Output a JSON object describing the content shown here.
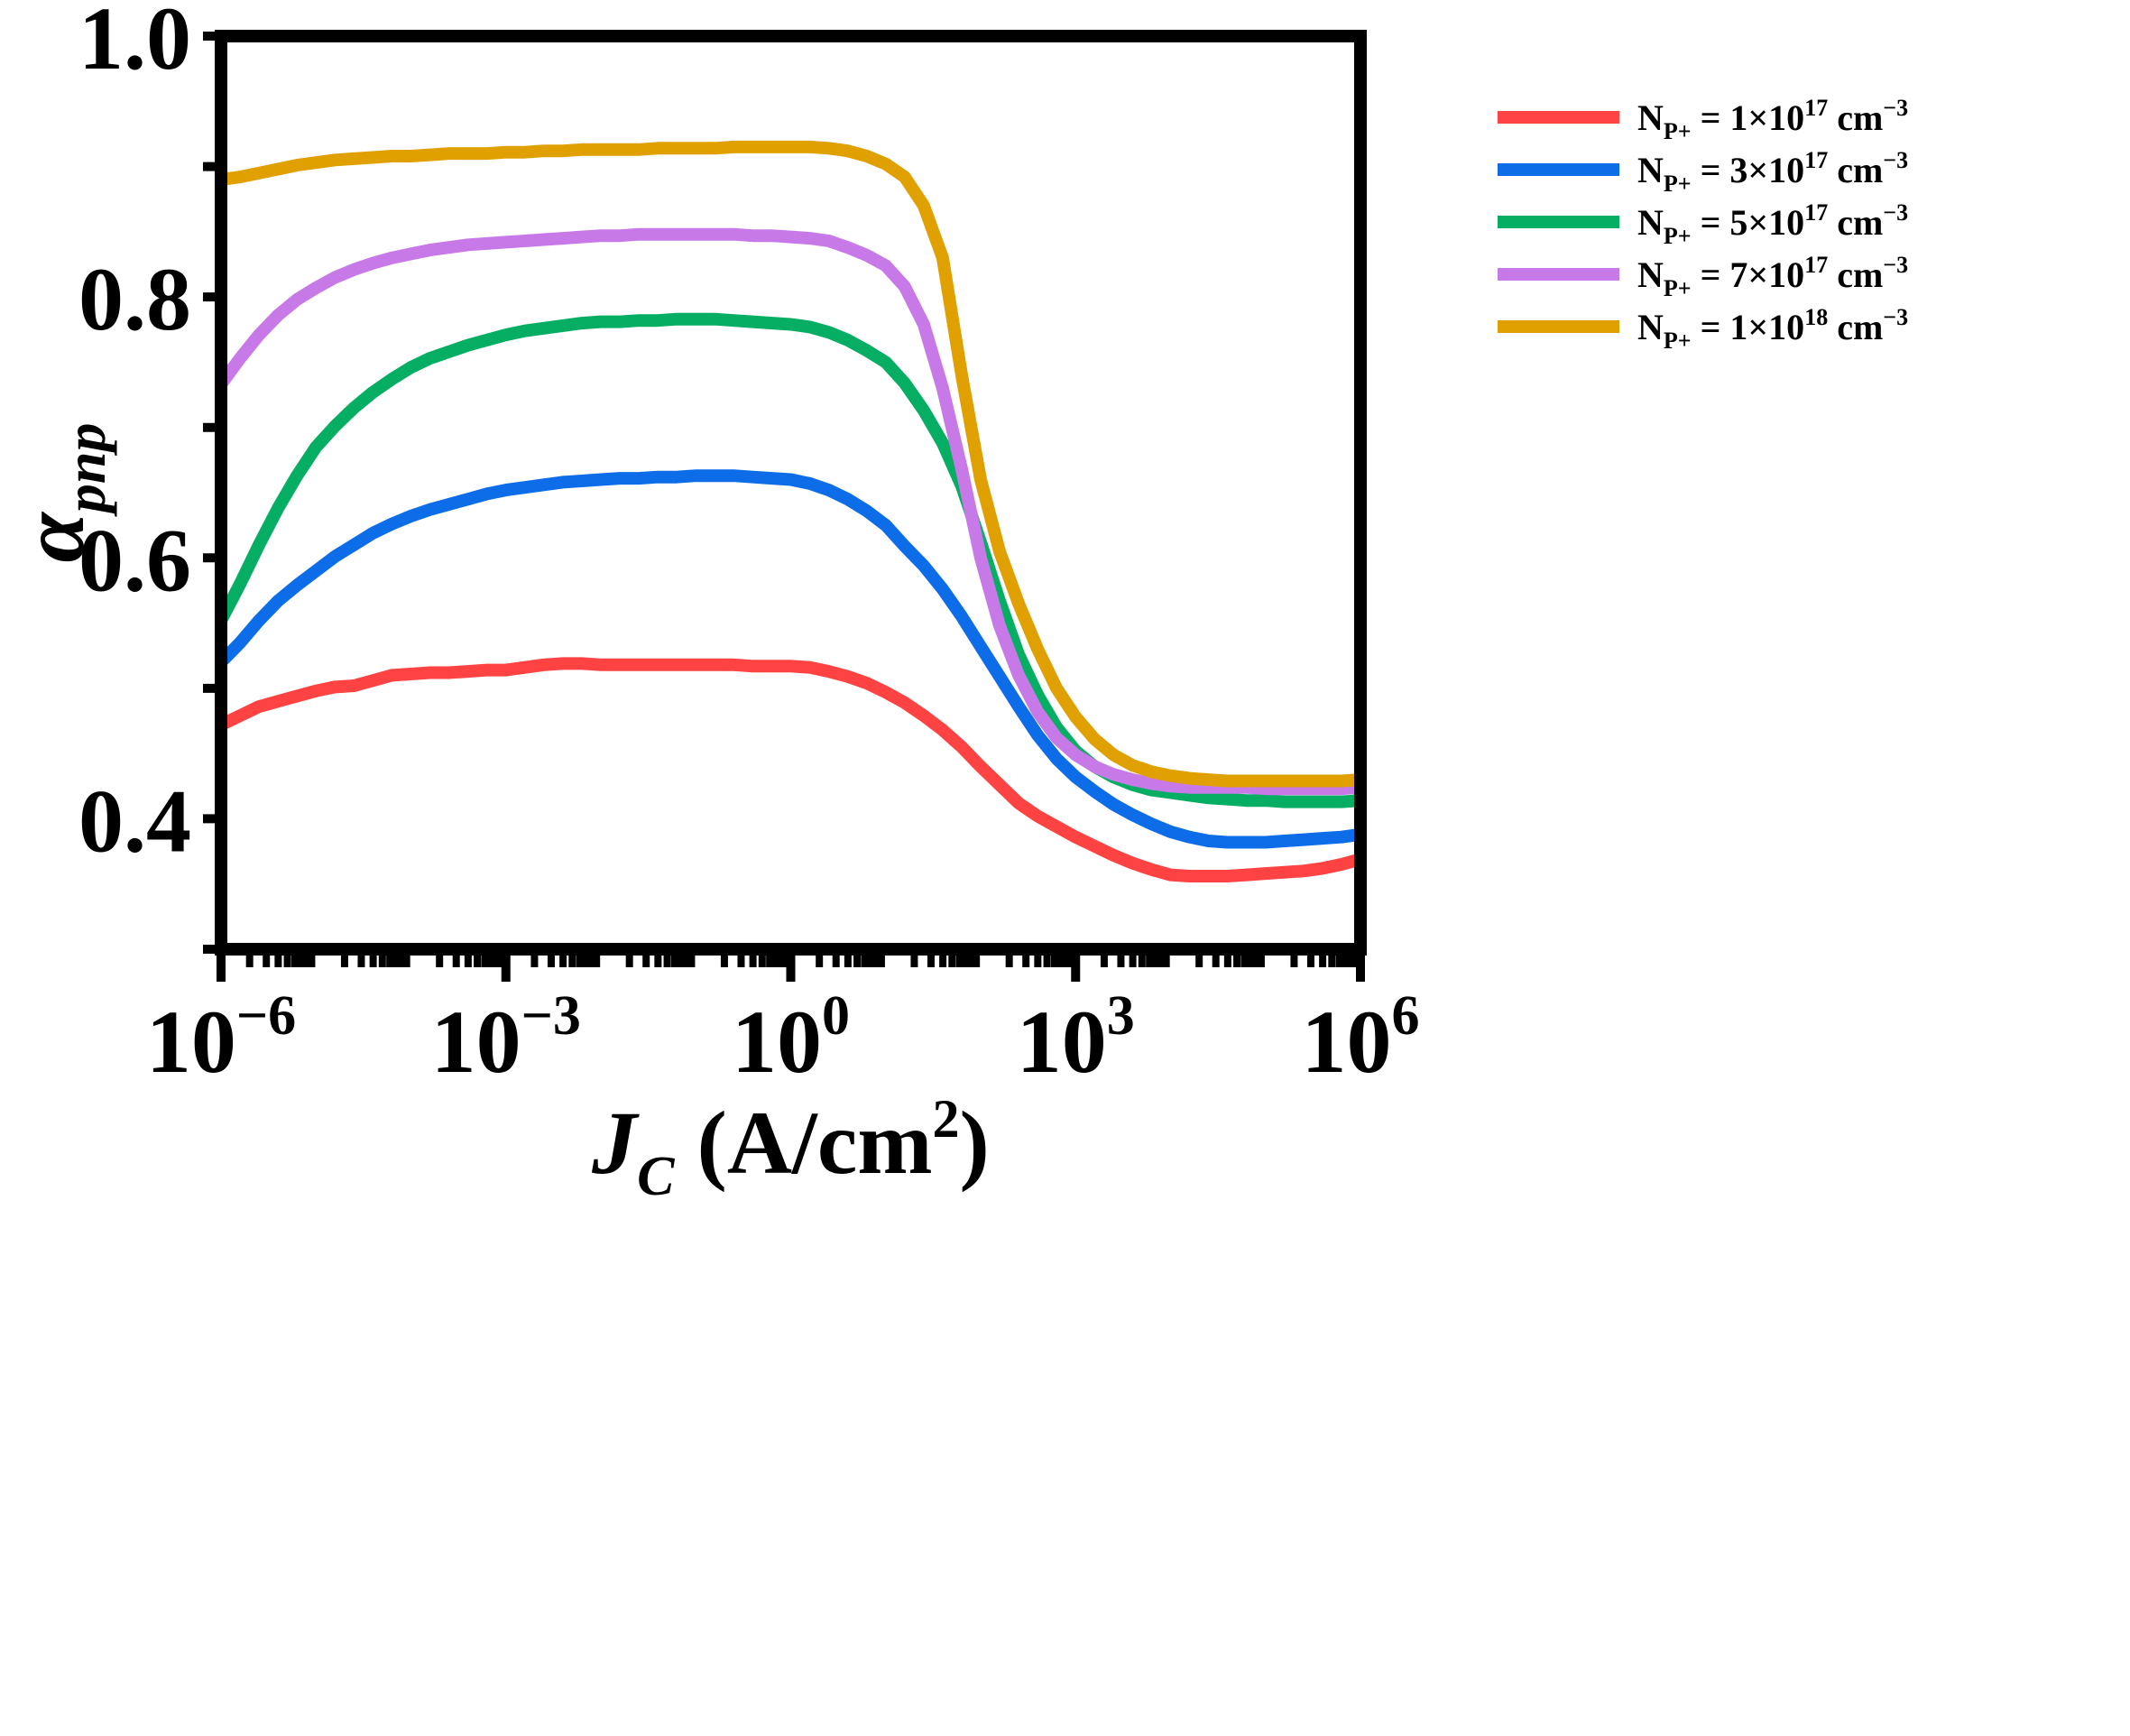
{
  "chart_data": {
    "type": "line",
    "title": "",
    "xlabel": {
      "symbol": "J",
      "subscript": "C",
      "unit_open": " (A/cm",
      "unit_sup": "2",
      "unit_close": ")"
    },
    "ylabel": {
      "symbol": "α",
      "subscript": "pnp"
    },
    "xscale": "log10",
    "xlim_exp": [
      -6,
      6
    ],
    "ylim": [
      0.3,
      1.0
    ],
    "x_ticks": [
      {
        "exp": -6,
        "base": "10",
        "sup": "−6"
      },
      {
        "exp": -3,
        "base": "10",
        "sup": "−3"
      },
      {
        "exp": 0,
        "base": "10",
        "sup": "0"
      },
      {
        "exp": 3,
        "base": "10",
        "sup": "3"
      },
      {
        "exp": 6,
        "base": "10",
        "sup": "6"
      }
    ],
    "y_ticks": [
      {
        "value": 1.0,
        "label": "1.0"
      },
      {
        "value": 0.8,
        "label": "0.8"
      },
      {
        "value": 0.6,
        "label": "0.6"
      },
      {
        "value": 0.4,
        "label": "0.4"
      }
    ],
    "y_minor_ticks": [
      0.9,
      0.7,
      0.5,
      0.3
    ],
    "grid": false,
    "legend_position": "top-right",
    "series": [
      {
        "name": "NP+ = 1×10^17 cm^-3",
        "label": {
          "main": "N",
          "sub": "P+",
          "mid": " = 1×10",
          "sup1": "17",
          "unit": " cm",
          "sup2": "−3"
        },
        "color": "#ff4242",
        "x_exp": [
          -6,
          -5.8,
          -5.6,
          -5.4,
          -5.2,
          -5,
          -4.8,
          -4.6,
          -4.4,
          -4.2,
          -4,
          -3.8,
          -3.6,
          -3.4,
          -3.2,
          -3,
          -2.8,
          -2.6,
          -2.4,
          -2.2,
          -2,
          -1.8,
          -1.6,
          -1.4,
          -1.2,
          -1,
          -0.8,
          -0.6,
          -0.4,
          -0.2,
          0,
          0.2,
          0.4,
          0.6,
          0.8,
          1,
          1.2,
          1.4,
          1.6,
          1.8,
          2,
          2.2,
          2.4,
          2.6,
          2.8,
          3,
          3.2,
          3.4,
          3.6,
          3.8,
          4,
          4.2,
          4.4,
          4.6,
          4.8,
          5,
          5.2,
          5.4,
          5.6,
          5.8,
          6
        ],
        "y": [
          0.472,
          0.479,
          0.486,
          0.49,
          0.494,
          0.498,
          0.501,
          0.502,
          0.506,
          0.51,
          0.511,
          0.512,
          0.512,
          0.513,
          0.514,
          0.514,
          0.516,
          0.518,
          0.519,
          0.519,
          0.518,
          0.518,
          0.518,
          0.518,
          0.518,
          0.518,
          0.518,
          0.518,
          0.517,
          0.517,
          0.517,
          0.516,
          0.513,
          0.509,
          0.504,
          0.497,
          0.489,
          0.479,
          0.468,
          0.455,
          0.44,
          0.426,
          0.412,
          0.402,
          0.394,
          0.386,
          0.379,
          0.372,
          0.366,
          0.361,
          0.357,
          0.356,
          0.356,
          0.356,
          0.357,
          0.358,
          0.359,
          0.36,
          0.362,
          0.365,
          0.369
        ]
      },
      {
        "name": "NP+ = 3×10^17 cm^-3",
        "label": {
          "main": "N",
          "sub": "P+",
          "mid": " = 3×10",
          "sup1": "17",
          "unit": " cm",
          "sup2": "−3"
        },
        "color": "#0d6de8",
        "x_exp": [
          -6,
          -5.8,
          -5.6,
          -5.4,
          -5.2,
          -5,
          -4.8,
          -4.6,
          -4.4,
          -4.2,
          -4,
          -3.8,
          -3.6,
          -3.4,
          -3.2,
          -3,
          -2.8,
          -2.6,
          -2.4,
          -2.2,
          -2,
          -1.8,
          -1.6,
          -1.4,
          -1.2,
          -1,
          -0.8,
          -0.6,
          -0.4,
          -0.2,
          0,
          0.2,
          0.4,
          0.6,
          0.8,
          1,
          1.2,
          1.4,
          1.6,
          1.8,
          2,
          2.2,
          2.4,
          2.6,
          2.8,
          3,
          3.2,
          3.4,
          3.6,
          3.8,
          4,
          4.2,
          4.4,
          4.6,
          4.8,
          5,
          5.2,
          5.4,
          5.6,
          5.8,
          6
        ],
        "y": [
          0.52,
          0.535,
          0.552,
          0.567,
          0.579,
          0.59,
          0.601,
          0.61,
          0.619,
          0.626,
          0.632,
          0.637,
          0.641,
          0.645,
          0.649,
          0.652,
          0.654,
          0.656,
          0.658,
          0.659,
          0.66,
          0.661,
          0.661,
          0.662,
          0.662,
          0.663,
          0.663,
          0.663,
          0.662,
          0.661,
          0.66,
          0.657,
          0.652,
          0.645,
          0.636,
          0.625,
          0.609,
          0.594,
          0.576,
          0.555,
          0.532,
          0.509,
          0.486,
          0.464,
          0.446,
          0.432,
          0.421,
          0.411,
          0.403,
          0.396,
          0.39,
          0.386,
          0.383,
          0.382,
          0.382,
          0.382,
          0.383,
          0.384,
          0.385,
          0.386,
          0.388
        ]
      },
      {
        "name": "NP+ = 5×10^17 cm^-3",
        "label": {
          "main": "N",
          "sub": "P+",
          "mid": " = 5×10",
          "sup1": "17",
          "unit": " cm",
          "sup2": "−3"
        },
        "color": "#06ae64",
        "x_exp": [
          -6,
          -5.8,
          -5.6,
          -5.4,
          -5.2,
          -5,
          -4.8,
          -4.6,
          -4.4,
          -4.2,
          -4,
          -3.8,
          -3.6,
          -3.4,
          -3.2,
          -3,
          -2.8,
          -2.6,
          -2.4,
          -2.2,
          -2,
          -1.8,
          -1.6,
          -1.4,
          -1.2,
          -1,
          -0.8,
          -0.6,
          -0.4,
          -0.2,
          0,
          0.2,
          0.4,
          0.6,
          0.8,
          1,
          1.2,
          1.4,
          1.6,
          1.8,
          2,
          2.2,
          2.4,
          2.6,
          2.8,
          3,
          3.2,
          3.4,
          3.6,
          3.8,
          4,
          4.2,
          4.4,
          4.6,
          4.8,
          5,
          5.2,
          5.4,
          5.6,
          5.8,
          6
        ],
        "y": [
          0.552,
          0.58,
          0.61,
          0.638,
          0.663,
          0.685,
          0.701,
          0.715,
          0.727,
          0.737,
          0.746,
          0.753,
          0.758,
          0.763,
          0.767,
          0.771,
          0.774,
          0.776,
          0.778,
          0.78,
          0.781,
          0.781,
          0.782,
          0.782,
          0.783,
          0.783,
          0.783,
          0.782,
          0.781,
          0.78,
          0.779,
          0.777,
          0.773,
          0.767,
          0.759,
          0.75,
          0.734,
          0.713,
          0.688,
          0.655,
          0.612,
          0.567,
          0.526,
          0.495,
          0.47,
          0.452,
          0.44,
          0.432,
          0.426,
          0.422,
          0.42,
          0.418,
          0.416,
          0.415,
          0.414,
          0.414,
          0.413,
          0.413,
          0.413,
          0.413,
          0.414
        ]
      },
      {
        "name": "NP+ = 7×10^17 cm^-3",
        "label": {
          "main": "N",
          "sub": "P+",
          "mid": " = 7×10",
          "sup1": "17",
          "unit": " cm",
          "sup2": "−3"
        },
        "color": "#c879e8",
        "x_exp": [
          -6,
          -5.8,
          -5.6,
          -5.4,
          -5.2,
          -5,
          -4.8,
          -4.6,
          -4.4,
          -4.2,
          -4,
          -3.8,
          -3.6,
          -3.4,
          -3.2,
          -3,
          -2.8,
          -2.6,
          -2.4,
          -2.2,
          -2,
          -1.8,
          -1.6,
          -1.4,
          -1.2,
          -1,
          -0.8,
          -0.6,
          -0.4,
          -0.2,
          0,
          0.2,
          0.4,
          0.6,
          0.8,
          1,
          1.2,
          1.4,
          1.6,
          1.8,
          2,
          2.2,
          2.4,
          2.6,
          2.8,
          3,
          3.2,
          3.4,
          3.6,
          3.8,
          4,
          4.2,
          4.4,
          4.6,
          4.8,
          5,
          5.2,
          5.4,
          5.6,
          5.8,
          6
        ],
        "y": [
          0.733,
          0.753,
          0.771,
          0.786,
          0.798,
          0.807,
          0.815,
          0.821,
          0.826,
          0.83,
          0.833,
          0.836,
          0.838,
          0.84,
          0.841,
          0.842,
          0.843,
          0.844,
          0.845,
          0.846,
          0.847,
          0.847,
          0.848,
          0.848,
          0.848,
          0.848,
          0.848,
          0.848,
          0.847,
          0.847,
          0.846,
          0.845,
          0.843,
          0.838,
          0.832,
          0.824,
          0.808,
          0.779,
          0.73,
          0.668,
          0.6,
          0.548,
          0.51,
          0.482,
          0.462,
          0.449,
          0.44,
          0.434,
          0.43,
          0.427,
          0.425,
          0.424,
          0.424,
          0.424,
          0.424,
          0.423,
          0.423,
          0.423,
          0.423,
          0.423,
          0.424
        ]
      },
      {
        "name": "NP+ = 1×10^18 cm^-3",
        "label": {
          "main": "N",
          "sub": "P+",
          "mid": " = 1×10",
          "sup1": "18",
          "unit": " cm",
          "sup2": "−3"
        },
        "color": "#e0a000",
        "x_exp": [
          -6,
          -5.8,
          -5.6,
          -5.4,
          -5.2,
          -5,
          -4.8,
          -4.6,
          -4.4,
          -4.2,
          -4,
          -3.8,
          -3.6,
          -3.4,
          -3.2,
          -3,
          -2.8,
          -2.6,
          -2.4,
          -2.2,
          -2,
          -1.8,
          -1.6,
          -1.4,
          -1.2,
          -1,
          -0.8,
          -0.6,
          -0.4,
          -0.2,
          0,
          0.2,
          0.4,
          0.6,
          0.8,
          1,
          1.2,
          1.4,
          1.6,
          1.8,
          2,
          2.2,
          2.4,
          2.6,
          2.8,
          3,
          3.2,
          3.4,
          3.6,
          3.8,
          4,
          4.2,
          4.4,
          4.6,
          4.8,
          5,
          5.2,
          5.4,
          5.6,
          5.8,
          6
        ],
        "y": [
          0.89,
          0.892,
          0.895,
          0.898,
          0.901,
          0.903,
          0.905,
          0.906,
          0.907,
          0.908,
          0.908,
          0.909,
          0.91,
          0.91,
          0.91,
          0.911,
          0.911,
          0.912,
          0.912,
          0.913,
          0.913,
          0.913,
          0.913,
          0.914,
          0.914,
          0.914,
          0.914,
          0.915,
          0.915,
          0.915,
          0.915,
          0.915,
          0.914,
          0.912,
          0.908,
          0.902,
          0.892,
          0.87,
          0.83,
          0.74,
          0.66,
          0.605,
          0.565,
          0.53,
          0.5,
          0.478,
          0.461,
          0.449,
          0.441,
          0.436,
          0.433,
          0.431,
          0.43,
          0.429,
          0.429,
          0.429,
          0.429,
          0.429,
          0.429,
          0.429,
          0.43
        ]
      }
    ]
  }
}
